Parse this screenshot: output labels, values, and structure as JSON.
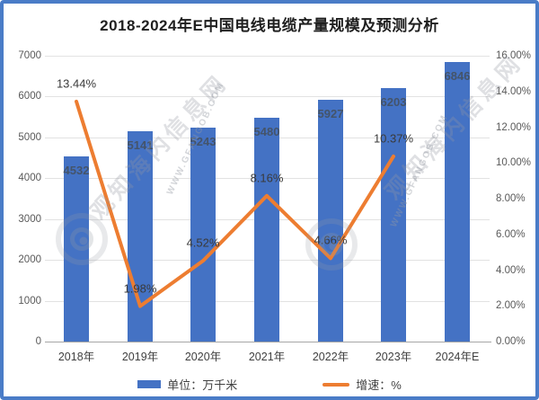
{
  "title": "2018-2024年E中国电线电缆产量规模及预测分析",
  "chart_data": {
    "type": "bar+line combo",
    "categories": [
      "2018年",
      "2019年",
      "2020年",
      "2021年",
      "2022年",
      "2023年",
      "2024年E"
    ],
    "series": [
      {
        "name": "单位：万千米",
        "type": "bar",
        "color": "#4472C4",
        "values": [
          4532,
          5141,
          5243,
          5480,
          5927,
          6203,
          6846
        ]
      },
      {
        "name": "增速：%",
        "type": "line",
        "color": "#ED7D31",
        "values": [
          13.44,
          1.98,
          4.52,
          8.16,
          4.66,
          10.37,
          null
        ]
      }
    ],
    "bar_labels": [
      "4532",
      "5141",
      "5243",
      "5480",
      "5927",
      "6203",
      "6846"
    ],
    "line_labels": [
      "13.44%",
      "1.98%",
      "4.52%",
      "8.16%",
      "4.66%",
      "10.37%"
    ],
    "left_axis": {
      "min": 0,
      "max": 7000,
      "step": 1000,
      "ticks": [
        "0",
        "1000",
        "2000",
        "3000",
        "4000",
        "5000",
        "6000",
        "7000"
      ]
    },
    "right_axis": {
      "min": 0,
      "max": 16,
      "step": 2,
      "ticks": [
        "0.00%",
        "2.00%",
        "4.00%",
        "6.00%",
        "8.00%",
        "10.00%",
        "12.00%",
        "14.00%",
        "16.00%"
      ]
    },
    "grid": "horizontal",
    "legend_position": "bottom"
  },
  "legend": [
    {
      "label": "单位：万千米",
      "color": "#4472C4",
      "swatch": "bar"
    },
    {
      "label": "增速：%",
      "color": "#ED7D31",
      "swatch": "line"
    }
  ],
  "watermark": {
    "text": "观知海内信息网",
    "subtext": "WWW.GFANGOB.COM"
  },
  "colors": {
    "frame_border": "#4A7CC7",
    "bar": "#4472C4",
    "line": "#ED7D31",
    "gridline": "#E2E2E2",
    "title_text": "#1F1F1F",
    "axis_text": "#595959",
    "bar_label_text": "#44546A"
  }
}
